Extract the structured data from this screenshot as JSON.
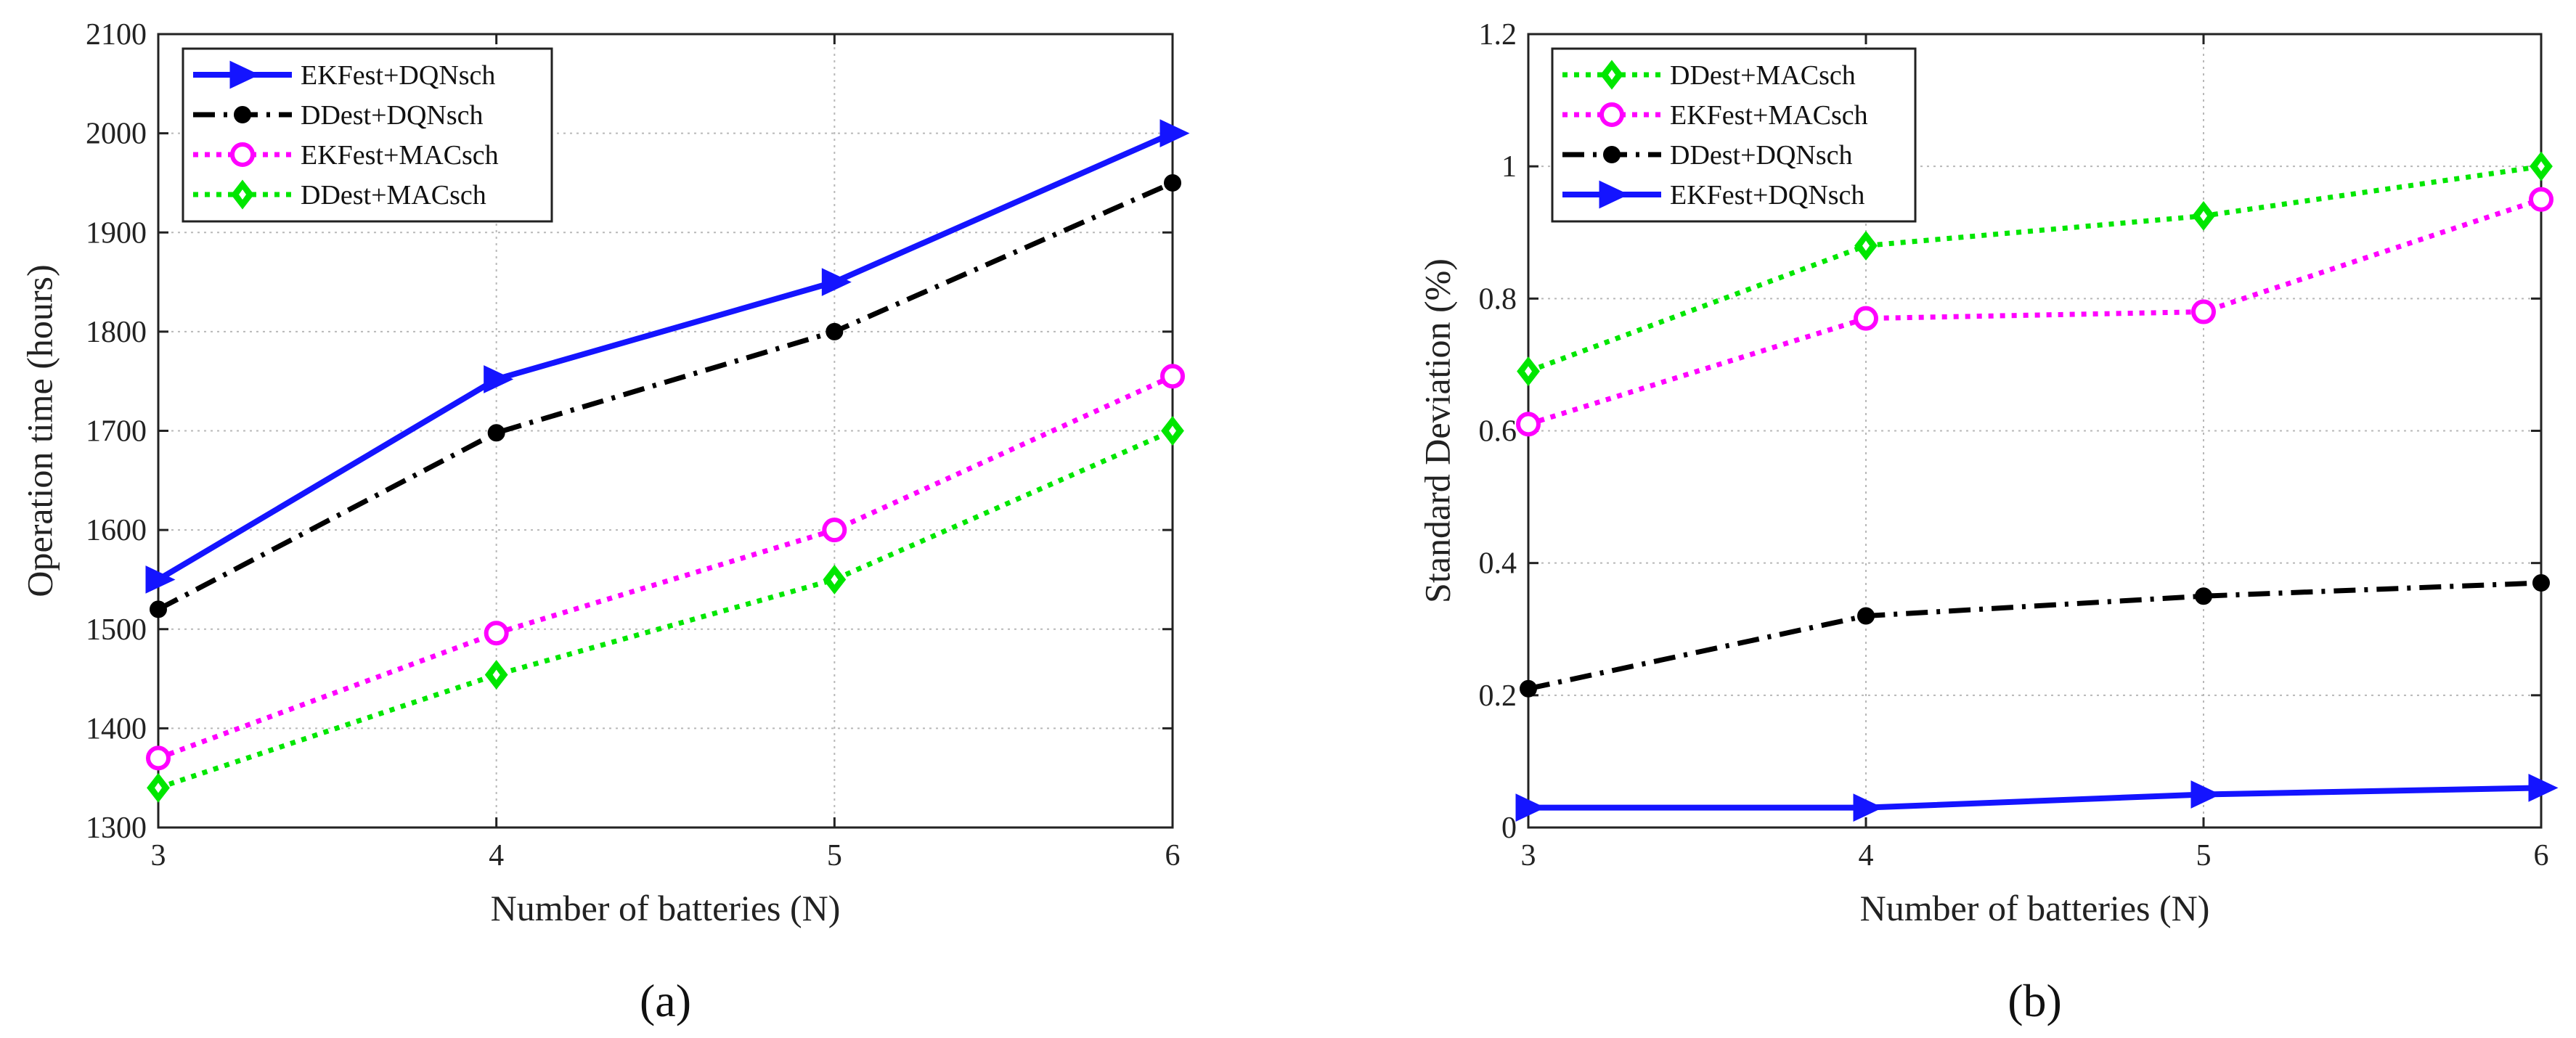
{
  "colors": {
    "EKFest+DQNsch": "#1414ff",
    "DDest+DQNsch": "#000000",
    "EKFest+MACsch": "#ff00ff",
    "DDest+MACsch": "#00e600",
    "grid": "#b8b8b8",
    "axis": "#222222"
  },
  "chart_data": [
    {
      "type": "line",
      "panel": "(a)",
      "title": "",
      "xlabel": "Number of batteries (N)",
      "ylabel": "Operation time (hours)",
      "x": [
        3,
        4,
        5,
        6
      ],
      "xlim": [
        3,
        6
      ],
      "ylim": [
        1300,
        2100
      ],
      "xticks": [
        "3",
        "4",
        "5",
        "6"
      ],
      "yticks": [
        "1300",
        "1400",
        "1500",
        "1600",
        "1700",
        "1800",
        "1900",
        "2000",
        "2100"
      ],
      "grid": true,
      "legend_position": "top-left",
      "series": [
        {
          "name": "EKFest+DQNsch",
          "values": [
            1550,
            1752,
            1850,
            2000
          ],
          "style": "solid",
          "marker": "triangle-right"
        },
        {
          "name": "DDest+DQNsch",
          "values": [
            1520,
            1698,
            1800,
            1950
          ],
          "style": "dashdot",
          "marker": "dot"
        },
        {
          "name": "EKFest+MACsch",
          "values": [
            1370,
            1496,
            1600,
            1755
          ],
          "style": "dotted",
          "marker": "circle"
        },
        {
          "name": "DDest+MACsch",
          "values": [
            1340,
            1454,
            1550,
            1700
          ],
          "style": "dotted",
          "marker": "diamond"
        }
      ]
    },
    {
      "type": "line",
      "panel": "(b)",
      "title": "",
      "xlabel": "Number of batteries (N)",
      "ylabel": "Standard Deviation (%)",
      "x": [
        3,
        4,
        5,
        6
      ],
      "xlim": [
        3,
        6
      ],
      "ylim": [
        0,
        1.2
      ],
      "xticks": [
        "3",
        "4",
        "5",
        "6"
      ],
      "yticks": [
        "0",
        "0.2",
        "0.4",
        "0.6",
        "0.8",
        "1",
        "1.2"
      ],
      "grid": true,
      "legend_position": "top-left",
      "series": [
        {
          "name": "DDest+MACsch",
          "values": [
            0.69,
            0.88,
            0.925,
            1.0
          ],
          "style": "dotted",
          "marker": "diamond"
        },
        {
          "name": "EKFest+MACsch",
          "values": [
            0.61,
            0.77,
            0.78,
            0.95
          ],
          "style": "dotted",
          "marker": "circle"
        },
        {
          "name": "DDest+DQNsch",
          "values": [
            0.21,
            0.32,
            0.35,
            0.37
          ],
          "style": "dashdot",
          "marker": "dot"
        },
        {
          "name": "EKFest+DQNsch",
          "values": [
            0.03,
            0.03,
            0.05,
            0.06
          ],
          "style": "solid",
          "marker": "triangle-right"
        }
      ]
    }
  ]
}
